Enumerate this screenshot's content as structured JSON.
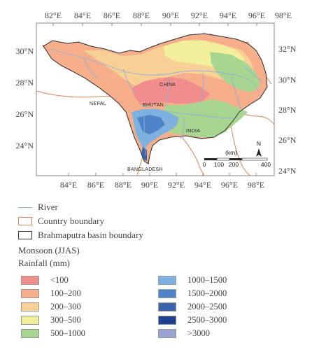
{
  "map": {
    "top_lon_labels": [
      "82°E",
      "84°E",
      "86°E",
      "88°E",
      "90°E",
      "92°E",
      "94°E",
      "96°E",
      "98°E"
    ],
    "bottom_lon_labels": [
      "84°E",
      "86°E",
      "88°E",
      "90°E",
      "92°E",
      "94°E",
      "96°E",
      "98°E"
    ],
    "left_lat_labels": [
      "30°N",
      "28°N",
      "26°N",
      "24°N"
    ],
    "right_lat_labels": [
      "32°N",
      "30°N",
      "28°N",
      "26°N",
      "24°N"
    ],
    "places": {
      "china": "CHINA",
      "nepal": "NEPAL",
      "bhutan": "BHUTAN",
      "india": "INDIA",
      "bangladesh": "BANGLADESH"
    },
    "scale": {
      "unit": "(km)",
      "ticks": [
        "0",
        "100",
        "200",
        "400"
      ]
    },
    "north": "N",
    "colors": {
      "river": "#8ab0d8",
      "country_boundary": "#d9835a",
      "basin_boundary": "#333333"
    }
  },
  "legend": {
    "river": "River",
    "country_boundary": "Country boundary",
    "basin_boundary": "Brahmaputra basin boundary",
    "title_line1": "Monsoon (JJAS)",
    "title_line2": "Rainfall (mm)",
    "classes": [
      {
        "label": "<100",
        "color": "#f28d8d"
      },
      {
        "label": "100–200",
        "color": "#f6ae8b"
      },
      {
        "label": "200–300",
        "color": "#f8d095"
      },
      {
        "label": "300–500",
        "color": "#f2ef9c"
      },
      {
        "label": "500–1000",
        "color": "#a8d690"
      },
      {
        "label": "1000–1500",
        "color": "#7fb1e0"
      },
      {
        "label": "1500–2000",
        "color": "#4f85c8"
      },
      {
        "label": "2000–2500",
        "color": "#3a63ad"
      },
      {
        "label": "2500–3000",
        "color": "#1f3f8f"
      },
      {
        "label": ">3000",
        "color": "#9aa2cf"
      }
    ]
  }
}
